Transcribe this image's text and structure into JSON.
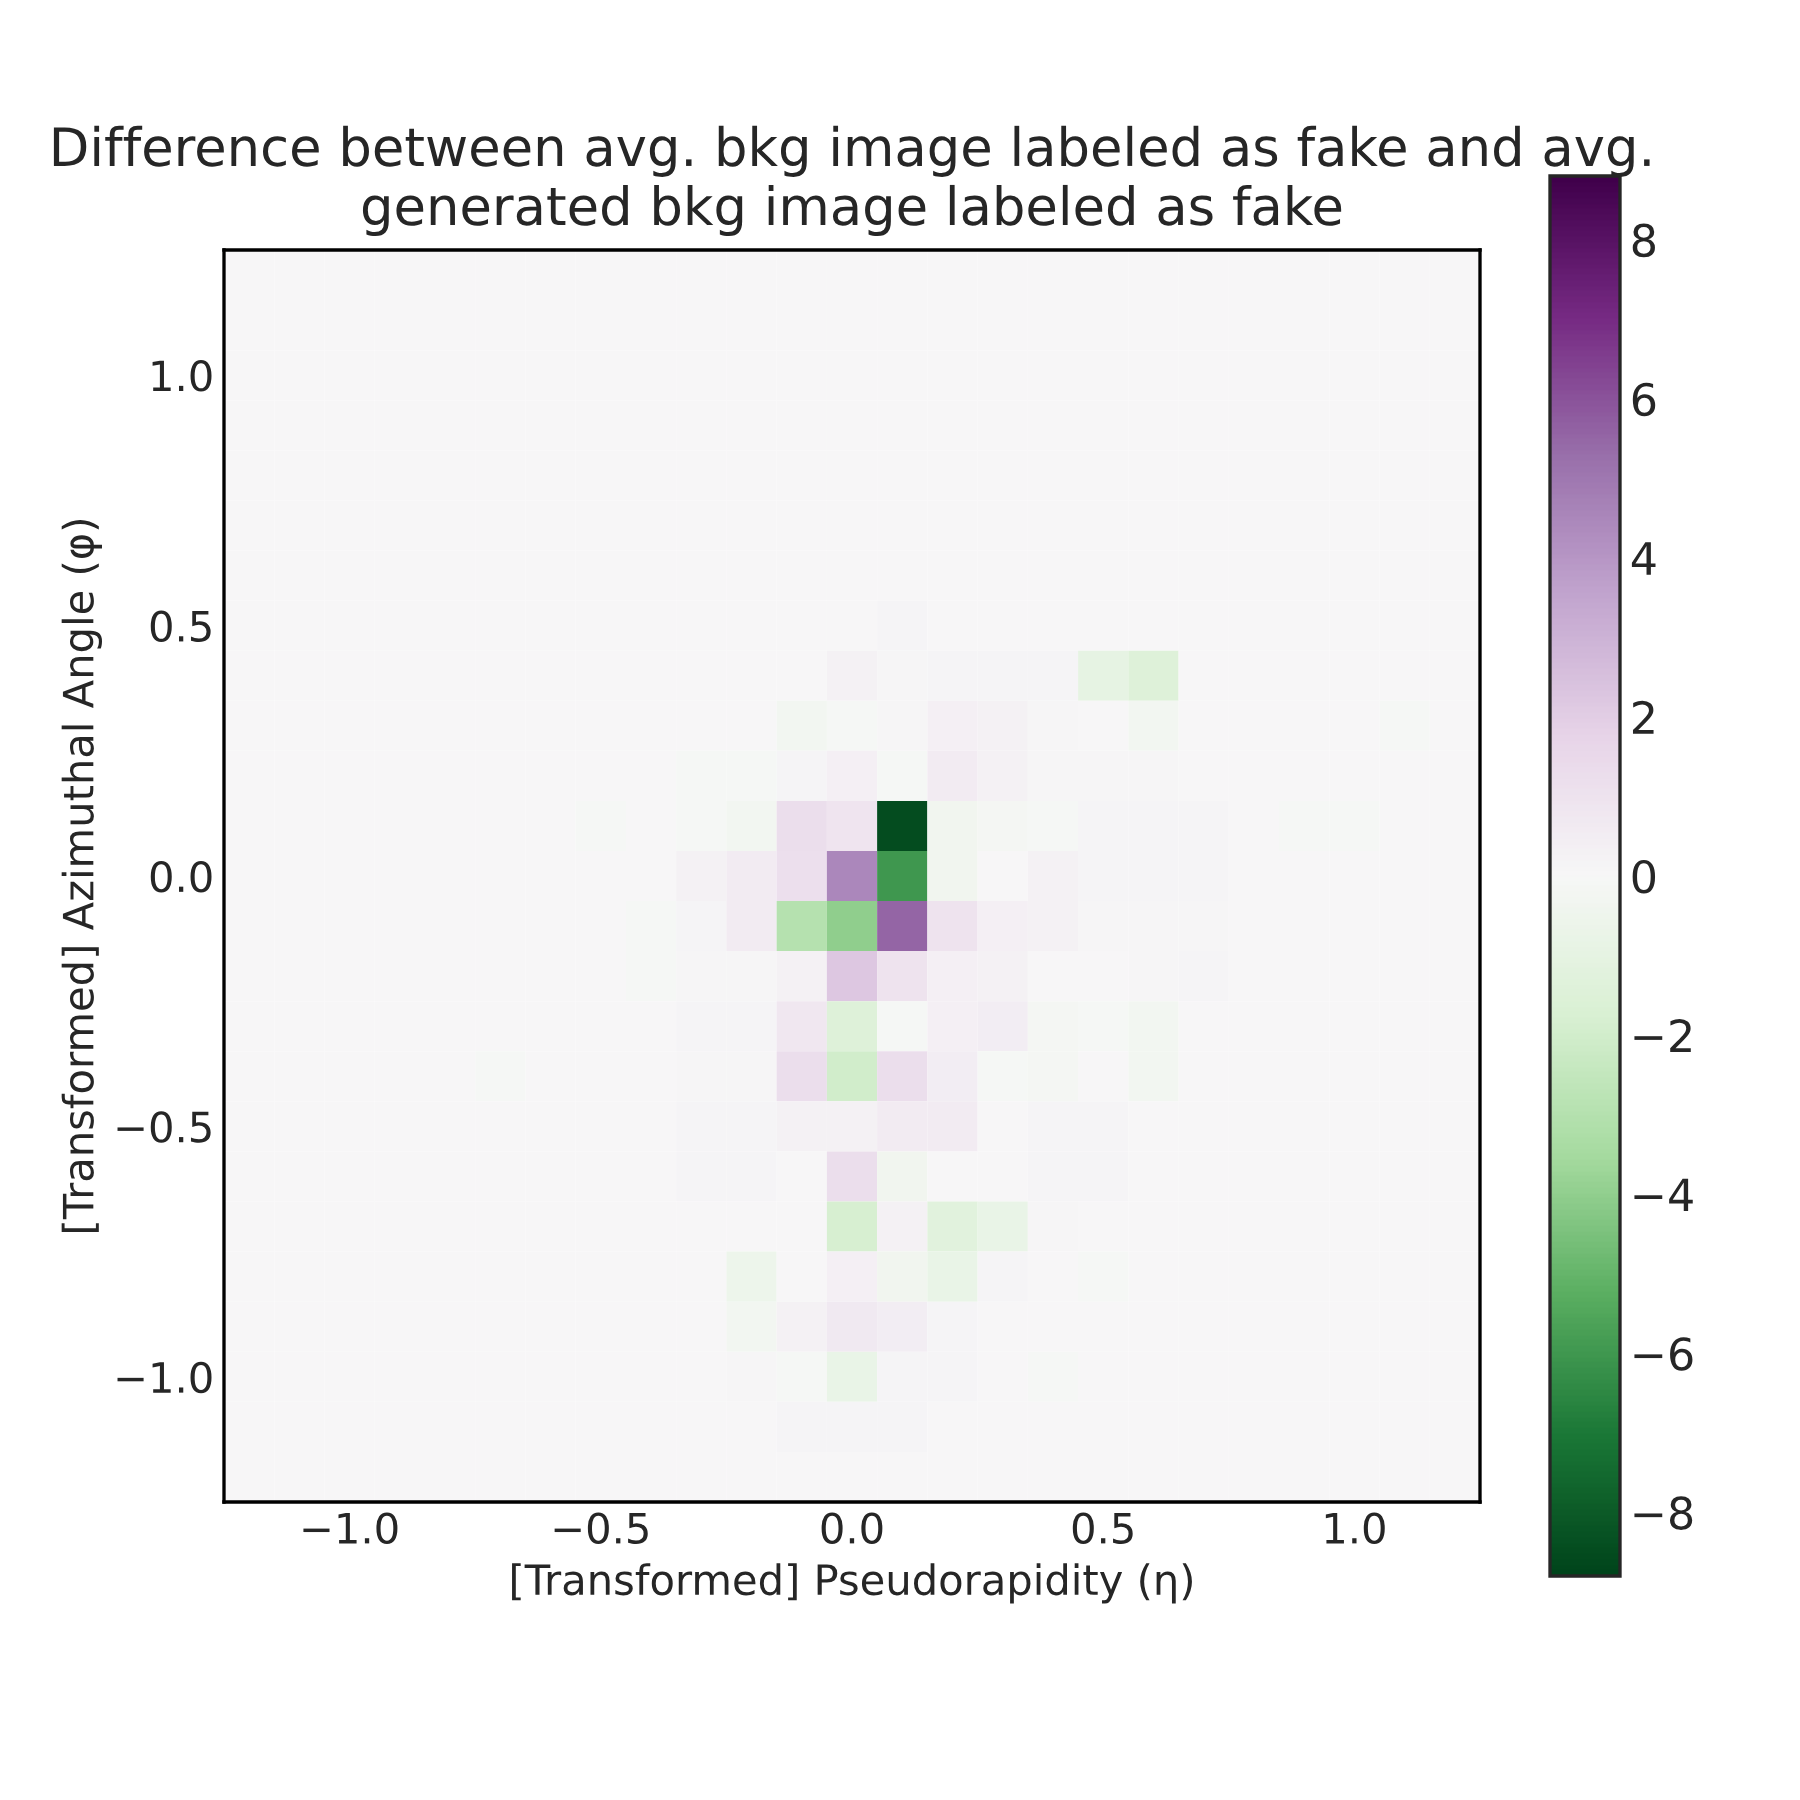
{
  "chart_data": {
    "type": "heatmap",
    "title": "Difference between avg. bkg image labeled as fake and avg. generated bkg image labeled as fake",
    "xlabel": "[Transformed] Pseudorapidity (η)",
    "ylabel": "[Transformed] Azimuthal Angle (φ)",
    "x": [
      -1.2,
      -1.1,
      -1.0,
      -0.9,
      -0.8,
      -0.7,
      -0.6,
      -0.5,
      -0.4,
      -0.3,
      -0.2,
      -0.1,
      0.0,
      0.1,
      0.2,
      0.3,
      0.4,
      0.5,
      0.6,
      0.7,
      0.8,
      0.9,
      1.0,
      1.1,
      1.2
    ],
    "y": [
      1.2,
      1.1,
      1.0,
      0.9,
      0.8,
      0.7,
      0.6,
      0.5,
      0.4,
      0.3,
      0.2,
      0.1,
      0.0,
      -0.1,
      -0.2,
      -0.3,
      -0.4,
      -0.5,
      -0.6,
      -0.7,
      -0.8,
      -0.9,
      -1.0,
      -1.1,
      -1.2
    ],
    "xlim": [
      -1.25,
      1.25
    ],
    "xticks": [
      {
        "value": -1.0,
        "label": "−1.0"
      },
      {
        "value": -0.5,
        "label": "−0.5"
      },
      {
        "value": 0.0,
        "label": "0.0"
      },
      {
        "value": 0.5,
        "label": "0.5"
      },
      {
        "value": 1.0,
        "label": "1.0"
      }
    ],
    "ylim": [
      -1.25,
      1.25
    ],
    "yticks": [
      {
        "value": -1.0,
        "label": "−1.0"
      },
      {
        "value": -0.5,
        "label": "−0.5"
      },
      {
        "value": 0.0,
        "label": "0.0"
      },
      {
        "value": 0.5,
        "label": "0.5"
      },
      {
        "value": 1.0,
        "label": "1.0"
      }
    ],
    "clim": [
      -8.8,
      8.8
    ],
    "cticks": [
      {
        "value": -8,
        "label": "−8"
      },
      {
        "value": -6,
        "label": "−6"
      },
      {
        "value": -4,
        "label": "−4"
      },
      {
        "value": -2,
        "label": "−2"
      },
      0,
      2,
      4,
      6,
      8
    ],
    "cells": [
      [
        0,
        0,
        0,
        0,
        0,
        0,
        0,
        0,
        0,
        0,
        0,
        0,
        0,
        0,
        0,
        0,
        0,
        0,
        0,
        0,
        0,
        0,
        0,
        0,
        0
      ],
      [
        0,
        0,
        0,
        0,
        0,
        0,
        0,
        0,
        0,
        0,
        0,
        0,
        0,
        0,
        0,
        0,
        0,
        0,
        0,
        0,
        0,
        0,
        0,
        0,
        0
      ],
      [
        0,
        0,
        0,
        0,
        0,
        0,
        0,
        0,
        0,
        0,
        0,
        0,
        0,
        0,
        0,
        0,
        0,
        0,
        0,
        0,
        0,
        0,
        0,
        0,
        0
      ],
      [
        0,
        0,
        0,
        0,
        0,
        0,
        0,
        0,
        0,
        0,
        0,
        0,
        0,
        0,
        0,
        0,
        0,
        0,
        0,
        0,
        0,
        0,
        0,
        0,
        0
      ],
      [
        0,
        0,
        0,
        0,
        0,
        0,
        0,
        0,
        0,
        0,
        0,
        0,
        0,
        0,
        0,
        0,
        0,
        0,
        0,
        0,
        0,
        0,
        0,
        0,
        0
      ],
      [
        0,
        0,
        0,
        0,
        0,
        0,
        0,
        0,
        0,
        0,
        0,
        0,
        0,
        0,
        0,
        0,
        0,
        0,
        0,
        0,
        0,
        0,
        0,
        0,
        0
      ],
      [
        0,
        0,
        0,
        0,
        0,
        0,
        0,
        0,
        0,
        0,
        0,
        0,
        0,
        0,
        0,
        0,
        0,
        0,
        0,
        0,
        0,
        0,
        0,
        0,
        0
      ],
      [
        0,
        0,
        0,
        0,
        0,
        0,
        0,
        0,
        0,
        0,
        0,
        0,
        0,
        0.2,
        0,
        0,
        0,
        0,
        0,
        0,
        0,
        0,
        0,
        0,
        0
      ],
      [
        0,
        0,
        0,
        0,
        0,
        0,
        0,
        0,
        0,
        0,
        0,
        0,
        0.3,
        0.1,
        0.2,
        0.2,
        0.2,
        -1,
        -1.5,
        0,
        0,
        0,
        0,
        0,
        0
      ],
      [
        0,
        0,
        0,
        0,
        0,
        0,
        0,
        0,
        0,
        0,
        0,
        -0.3,
        -0.1,
        0.1,
        0.4,
        0.3,
        0.1,
        0,
        -0.3,
        0,
        0,
        0,
        0,
        -0.1,
        0
      ],
      [
        0,
        0,
        0,
        0,
        0,
        0,
        0,
        0,
        0,
        -0.1,
        -0.1,
        0.2,
        0.4,
        -0.1,
        0.6,
        0.3,
        0.1,
        0.1,
        0.1,
        0,
        0,
        0,
        0,
        0,
        0
      ],
      [
        0,
        0,
        0,
        0,
        0,
        0,
        0,
        -0.1,
        0,
        -0.1,
        -0.3,
        1.3,
        0.9,
        -8.5,
        -0.4,
        -0.2,
        -0.1,
        0.2,
        0.2,
        0.2,
        0,
        -0.1,
        -0.1,
        0,
        0
      ],
      [
        0,
        0,
        0,
        0,
        0,
        0,
        0,
        0,
        0,
        0.3,
        0.6,
        1.2,
        4.5,
        -6,
        -0.4,
        0,
        0.3,
        0.2,
        0.2,
        0.2,
        0,
        0,
        0,
        0,
        0
      ],
      [
        0,
        0,
        0,
        0,
        0,
        0,
        0,
        0,
        -0.1,
        0.2,
        0.6,
        -3,
        -4,
        5.5,
        1,
        0.4,
        0.3,
        0.1,
        0.1,
        0.1,
        0,
        0,
        0,
        0,
        0
      ],
      [
        0,
        0,
        0,
        0,
        0,
        0,
        0,
        0,
        -0.1,
        0.1,
        0.1,
        0.3,
        2.2,
        1,
        0.4,
        0.3,
        0,
        0,
        0.1,
        0.2,
        0,
        0,
        0,
        0,
        0
      ],
      [
        0,
        0,
        0,
        0,
        0,
        0,
        0,
        0,
        0,
        0.2,
        0.2,
        0.8,
        -1.5,
        -0.1,
        0.4,
        0.5,
        -0.2,
        -0.1,
        -0.3,
        0,
        0,
        0,
        0,
        0,
        0
      ],
      [
        0,
        0,
        0,
        0,
        0,
        -0.1,
        0,
        0,
        0,
        0.1,
        0.1,
        1.3,
        -2,
        1.3,
        0.5,
        -0.1,
        -0.2,
        0,
        -0.3,
        0,
        0,
        0,
        0,
        0,
        0
      ],
      [
        0,
        0,
        0,
        0,
        0,
        0,
        0,
        0,
        0,
        0.2,
        0.2,
        0.3,
        0.3,
        0.6,
        0.6,
        0,
        0.2,
        0.2,
        0,
        0,
        0,
        0,
        0,
        0,
        0
      ],
      [
        0,
        0,
        0,
        0,
        0,
        0,
        0,
        0,
        0,
        0.2,
        0.2,
        0,
        1.3,
        -0.4,
        0,
        0,
        0.2,
        0.2,
        0,
        0,
        0,
        0,
        0,
        0,
        0
      ],
      [
        0,
        0,
        0,
        0,
        0,
        0,
        0,
        0,
        0,
        0,
        0,
        0,
        -1.8,
        0.3,
        -1.3,
        -0.8,
        0.1,
        0,
        0,
        0,
        0,
        0,
        0,
        0,
        0
      ],
      [
        0,
        0,
        0,
        0,
        0,
        0,
        0,
        0,
        0,
        0,
        -0.6,
        0,
        0.4,
        -0.4,
        -0.8,
        0.2,
        0,
        -0.1,
        0,
        0,
        0,
        0,
        0,
        0,
        0
      ],
      [
        0,
        0,
        0,
        0,
        0,
        0,
        0,
        0,
        0,
        0,
        -0.3,
        0.3,
        0.7,
        0.5,
        0.2,
        0,
        0,
        0,
        0,
        0,
        0,
        0,
        0,
        0,
        0
      ],
      [
        0,
        0,
        0,
        0,
        0,
        0,
        0,
        0,
        0,
        0,
        0.1,
        -0.1,
        -0.8,
        0.2,
        0.2,
        0,
        -0.1,
        0,
        0,
        0,
        0,
        0,
        0,
        0,
        0
      ],
      [
        0,
        0,
        0,
        0,
        0,
        0,
        0,
        0,
        0,
        0,
        0,
        0.2,
        0.2,
        0.2,
        0,
        0,
        0,
        0,
        0,
        0,
        0,
        0,
        0,
        0,
        0
      ],
      [
        0,
        0,
        0,
        0,
        0,
        0,
        0,
        0,
        0,
        0,
        0,
        0,
        0,
        0,
        0,
        0,
        0,
        0,
        0,
        0,
        0,
        0,
        0,
        0,
        0
      ]
    ]
  }
}
